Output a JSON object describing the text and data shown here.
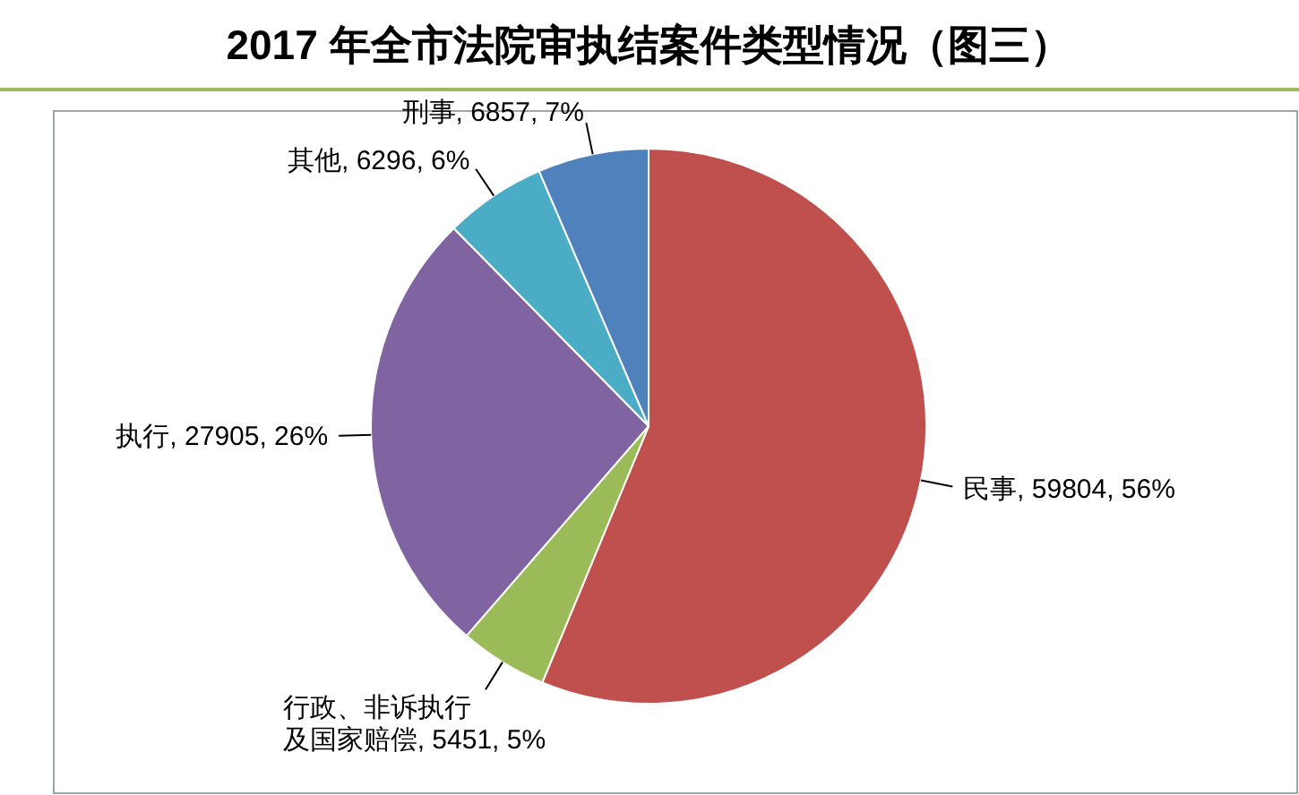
{
  "chart_data": {
    "type": "pie",
    "title": "2017 年全市法院审执结案件类型情况（图三）",
    "categories": [
      "民事",
      "行政、非诉执行及国家赔偿",
      "执行",
      "其他",
      "刑事"
    ],
    "values": [
      59804,
      5451,
      27905,
      6296,
      6857
    ],
    "value_labels": [
      "59804, 56%",
      "5451, 5%",
      "27905, 26%",
      "6296, 6%",
      "6857, 7%"
    ],
    "colors": [
      "#c0504d",
      "#9bbb59",
      "#8064a2",
      "#4bacc6",
      "#4f81bd"
    ]
  }
}
